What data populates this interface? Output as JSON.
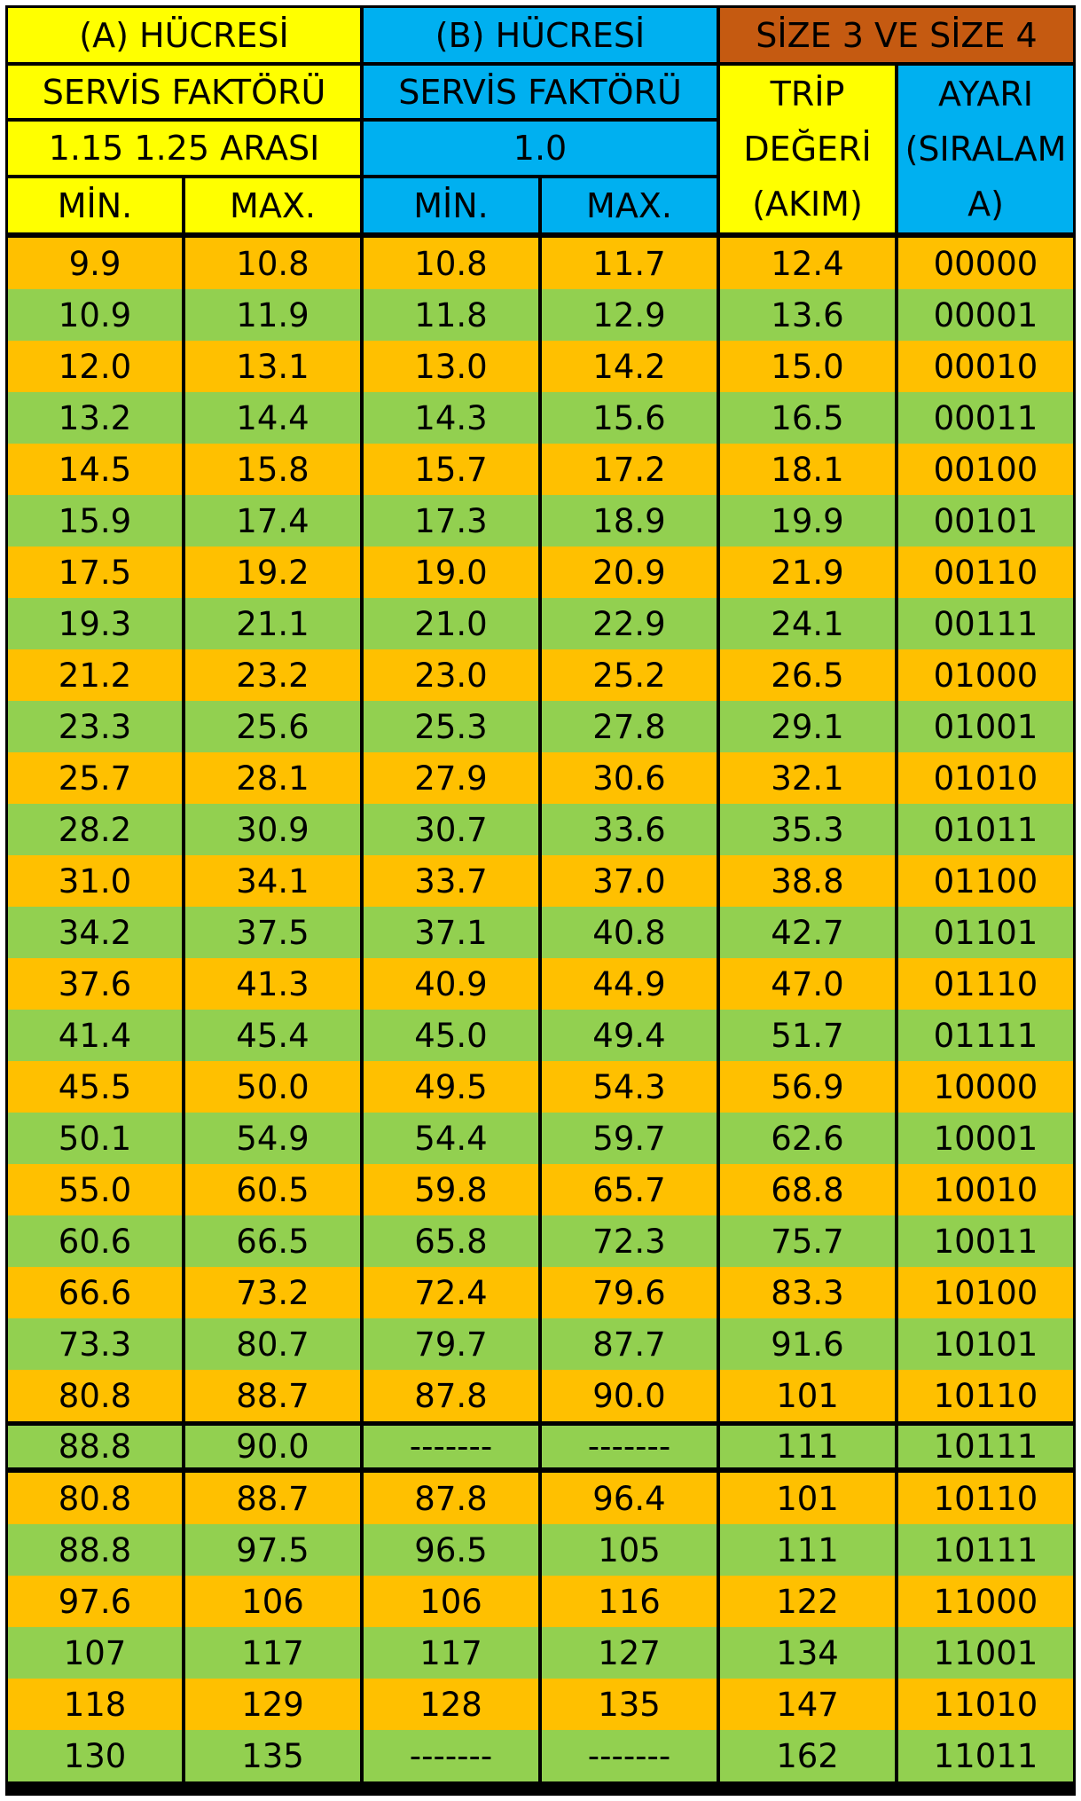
{
  "colors": {
    "yellow": "#FFFF00",
    "blue": "#00B0F0",
    "brown": "#C55A11",
    "orange": "#FFC000",
    "green": "#92D050",
    "border": "#000000"
  },
  "header": {
    "group_a_title": "(A) HÜCRESİ",
    "group_b_title": "(B) HÜCRESİ",
    "group_size_title": "SİZE 3 VE SİZE 4",
    "service_factor_a": "SERVİS FAKTÖRÜ",
    "service_factor_b": "SERVİS FAKTÖRÜ",
    "range_a": "1.15 1.25 ARASI",
    "range_b": "1.0",
    "min_a": "MİN.",
    "max_a": "MAX.",
    "min_b": "MİN.",
    "max_b": "MAX.",
    "trip_lines": [
      "TRİP",
      "DEĞERİ",
      "(AKIM)"
    ],
    "ayar_lines": [
      "AYARI",
      "(SIRALAM",
      "A)"
    ]
  },
  "rows": [
    [
      "9.9",
      "10.8",
      "10.8",
      "11.7",
      "12.4",
      "00000"
    ],
    [
      "10.9",
      "11.9",
      "11.8",
      "12.9",
      "13.6",
      "00001"
    ],
    [
      "12.0",
      "13.1",
      "13.0",
      "14.2",
      "15.0",
      "00010"
    ],
    [
      "13.2",
      "14.4",
      "14.3",
      "15.6",
      "16.5",
      "00011"
    ],
    [
      "14.5",
      "15.8",
      "15.7",
      "17.2",
      "18.1",
      "00100"
    ],
    [
      "15.9",
      "17.4",
      "17.3",
      "18.9",
      "19.9",
      "00101"
    ],
    [
      "17.5",
      "19.2",
      "19.0",
      "20.9",
      "21.9",
      "00110"
    ],
    [
      "19.3",
      "21.1",
      "21.0",
      "22.9",
      "24.1",
      "00111"
    ],
    [
      "21.2",
      "23.2",
      "23.0",
      "25.2",
      "26.5",
      "01000"
    ],
    [
      "23.3",
      "25.6",
      "25.3",
      "27.8",
      "29.1",
      "01001"
    ],
    [
      "25.7",
      "28.1",
      "27.9",
      "30.6",
      "32.1",
      "01010"
    ],
    [
      "28.2",
      "30.9",
      "30.7",
      "33.6",
      "35.3",
      "01011"
    ],
    [
      "31.0",
      "34.1",
      "33.7",
      "37.0",
      "38.8",
      "01100"
    ],
    [
      "34.2",
      "37.5",
      "37.1",
      "40.8",
      "42.7",
      "01101"
    ],
    [
      "37.6",
      "41.3",
      "40.9",
      "44.9",
      "47.0",
      "01110"
    ],
    [
      "41.4",
      "45.4",
      "45.0",
      "49.4",
      "51.7",
      "01111"
    ],
    [
      "45.5",
      "50.0",
      "49.5",
      "54.3",
      "56.9",
      "10000"
    ],
    [
      "50.1",
      "54.9",
      "54.4",
      "59.7",
      "62.6",
      "10001"
    ],
    [
      "55.0",
      "60.5",
      "59.8",
      "65.7",
      "68.8",
      "10010"
    ],
    [
      "60.6",
      "66.5",
      "65.8",
      "72.3",
      "75.7",
      "10011"
    ],
    [
      "66.6",
      "73.2",
      "72.4",
      "79.6",
      "83.3",
      "10100"
    ],
    [
      "73.3",
      "80.7",
      "79.7",
      "87.7",
      "91.6",
      "10101"
    ],
    [
      "80.8",
      "88.7",
      "87.8",
      "90.0",
      "101",
      "10110"
    ],
    [
      "88.8",
      "90.0",
      "-------",
      "-------",
      "111",
      "10111"
    ],
    [
      "80.8",
      "88.7",
      "87.8",
      "96.4",
      "101",
      "10110"
    ],
    [
      "88.8",
      "97.5",
      "96.5",
      "105",
      "111",
      "10111"
    ],
    [
      "97.6",
      "106",
      "106",
      "116",
      "122",
      "11000"
    ],
    [
      "107",
      "117",
      "117",
      "127",
      "134",
      "11001"
    ],
    [
      "118",
      "129",
      "128",
      "135",
      "147",
      "11010"
    ],
    [
      "130",
      "135",
      "-------",
      "-------",
      "162",
      "11011"
    ]
  ]
}
